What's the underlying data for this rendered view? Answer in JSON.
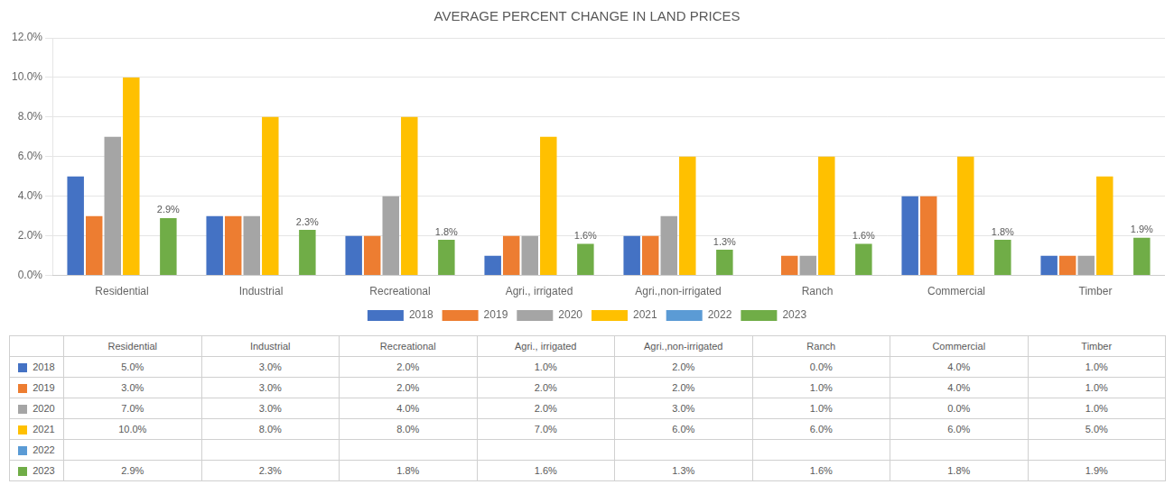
{
  "chart_data": {
    "type": "bar",
    "title": "AVERAGE PERCENT CHANGE IN LAND PRICES",
    "categories": [
      "Residential",
      "Industrial",
      "Recreational",
      "Agri., irrigated",
      "Agri.,non-irrigated",
      "Ranch",
      "Commercial",
      "Timber"
    ],
    "series": [
      {
        "name": "2018",
        "color": "#4472C4",
        "values": [
          5.0,
          3.0,
          2.0,
          1.0,
          2.0,
          0.0,
          4.0,
          1.0
        ],
        "value_labels": [
          "5.0%",
          "3.0%",
          "2.0%",
          "1.0%",
          "2.0%",
          "0.0%",
          "4.0%",
          "1.0%"
        ]
      },
      {
        "name": "2019",
        "color": "#ED7D31",
        "values": [
          3.0,
          3.0,
          2.0,
          2.0,
          2.0,
          1.0,
          4.0,
          1.0
        ],
        "value_labels": [
          "3.0%",
          "3.0%",
          "2.0%",
          "2.0%",
          "2.0%",
          "1.0%",
          "4.0%",
          "1.0%"
        ]
      },
      {
        "name": "2020",
        "color": "#A5A5A5",
        "values": [
          7.0,
          3.0,
          4.0,
          2.0,
          3.0,
          1.0,
          0.0,
          1.0
        ],
        "value_labels": [
          "7.0%",
          "3.0%",
          "4.0%",
          "2.0%",
          "3.0%",
          "1.0%",
          "0.0%",
          "1.0%"
        ]
      },
      {
        "name": "2021",
        "color": "#FFC000",
        "values": [
          10.0,
          8.0,
          8.0,
          7.0,
          6.0,
          6.0,
          6.0,
          5.0
        ],
        "value_labels": [
          "10.0%",
          "8.0%",
          "8.0%",
          "7.0%",
          "6.0%",
          "6.0%",
          "6.0%",
          "5.0%"
        ]
      },
      {
        "name": "2022",
        "color": "#5B9BD5",
        "values": [
          0.0,
          0.0,
          0.0,
          0.0,
          0.0,
          0.0,
          0.0,
          0.0
        ],
        "value_labels": [
          null,
          null,
          null,
          null,
          null,
          null,
          null,
          null
        ]
      },
      {
        "name": "2023",
        "color": "#70AD47",
        "values": [
          2.9,
          2.3,
          1.8,
          1.6,
          1.3,
          1.6,
          1.8,
          1.9
        ],
        "value_labels": [
          "2.9%",
          "2.3%",
          "1.8%",
          "1.6%",
          "1.3%",
          "1.6%",
          "1.8%",
          "1.9%"
        ],
        "data_labels": true
      }
    ],
    "ylim": [
      0,
      12.0
    ],
    "yticks": [
      {
        "value": 0.0,
        "label": "0.0%"
      },
      {
        "value": 2.0,
        "label": "2.0%"
      },
      {
        "value": 4.0,
        "label": "4.0%"
      },
      {
        "value": 6.0,
        "label": "6.0%"
      },
      {
        "value": 8.0,
        "label": "8.0%"
      },
      {
        "value": 10.0,
        "label": "10.0%"
      },
      {
        "value": 12.0,
        "label": "12.0%"
      }
    ],
    "grid": true,
    "legend": "bottom"
  }
}
